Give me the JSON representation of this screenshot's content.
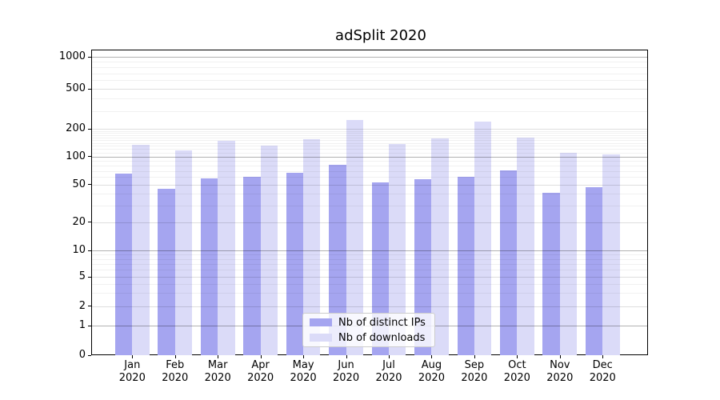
{
  "chart_data": {
    "type": "bar",
    "title": "adSplit 2020",
    "categories": [
      "Jan",
      "Feb",
      "Mar",
      "Apr",
      "May",
      "Jun",
      "Jul",
      "Aug",
      "Sep",
      "Oct",
      "Nov",
      "Dec"
    ],
    "year_label": "2020",
    "series": [
      {
        "name": "Nb of distinct IPs",
        "color": "#a5a5f0",
        "values": [
          65,
          45,
          58,
          60,
          66,
          82,
          53,
          57,
          60,
          71,
          41,
          47
        ]
      },
      {
        "name": "Nb of downloads",
        "color": "#dbdbf8",
        "values": [
          134,
          116,
          147,
          130,
          155,
          246,
          137,
          156,
          235,
          159,
          110,
          105
        ]
      }
    ],
    "y_ticks": [
      0,
      1,
      2,
      5,
      10,
      20,
      50,
      100,
      200,
      500,
      1000
    ],
    "y_scale": "symlog",
    "ylim": [
      0,
      1000
    ],
    "grid": "horizontal, major and minor",
    "legend_position": "lower center (inside plot)"
  }
}
